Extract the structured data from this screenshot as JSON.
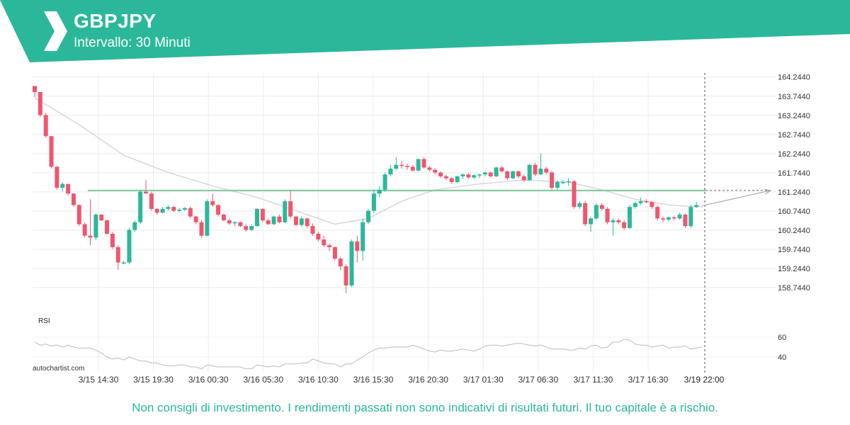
{
  "header": {
    "symbol": "GBPJPY",
    "interval": "Intervallo: 30 Minuti",
    "accent_color": "#2bb89a",
    "logo_icon": "autochartist-logo-icon"
  },
  "footer": {
    "disclaimer": "Non consigli di investimento. I rendimenti passati non sono indicativi di risultati futuri. Il tuo capitale è a rischio.",
    "credit": "autochartist.com"
  },
  "chart_data": {
    "type": "candlestick",
    "title": "GBPJPY",
    "subtitle": "Intervallo: 30 Minuti",
    "ylim": [
      158.3,
      164.35
    ],
    "y_ticks": [
      "164.2440",
      "163.7440",
      "163.2440",
      "162.7440",
      "162.2440",
      "161.7440",
      "161.2440",
      "160.7440",
      "160.2440",
      "159.7440",
      "159.2440",
      "158.7440"
    ],
    "x_ticks": [
      "3/15 14:30",
      "3/15 19:30",
      "3/16 00:30",
      "3/16 05:30",
      "3/16 10:30",
      "3/16 15:30",
      "3/16 20:30",
      "3/17 01:30",
      "3/17 06:30",
      "3/17 11:30",
      "3/17 16:30",
      "3/19 22:00"
    ],
    "up_color": "#2bb89a",
    "down_color": "#f0566e",
    "candles_ohlc": [
      [
        164.01,
        164.01,
        163.72,
        163.85
      ],
      [
        163.85,
        163.85,
        163.2,
        163.25
      ],
      [
        163.25,
        163.3,
        162.65,
        162.7
      ],
      [
        162.7,
        162.7,
        161.85,
        161.9
      ],
      [
        161.9,
        161.92,
        161.3,
        161.35
      ],
      [
        161.35,
        161.5,
        161.25,
        161.45
      ],
      [
        161.45,
        161.45,
        161.15,
        161.2
      ],
      [
        161.2,
        161.2,
        160.85,
        160.9
      ],
      [
        160.9,
        160.92,
        160.35,
        160.4
      ],
      [
        160.4,
        160.45,
        160.05,
        160.1
      ],
      [
        160.1,
        161.05,
        159.85,
        160.05
      ],
      [
        160.05,
        160.68,
        159.98,
        160.65
      ],
      [
        160.65,
        160.66,
        160.48,
        160.5
      ],
      [
        160.5,
        160.52,
        160.12,
        160.15
      ],
      [
        160.15,
        160.2,
        159.75,
        159.8
      ],
      [
        159.8,
        159.85,
        159.2,
        159.4
      ],
      [
        159.4,
        159.45,
        159.35,
        159.4
      ],
      [
        159.4,
        160.3,
        159.35,
        160.25
      ],
      [
        160.25,
        160.5,
        160.2,
        160.45
      ],
      [
        160.45,
        161.3,
        160.4,
        161.25
      ],
      [
        161.25,
        161.55,
        161.2,
        161.2
      ],
      [
        161.2,
        161.25,
        160.75,
        160.8
      ],
      [
        160.8,
        160.82,
        160.65,
        160.7
      ],
      [
        160.7,
        160.85,
        160.68,
        160.8
      ],
      [
        160.8,
        160.9,
        160.75,
        160.85
      ],
      [
        160.85,
        160.88,
        160.72,
        160.75
      ],
      [
        160.75,
        160.82,
        160.7,
        160.78
      ],
      [
        160.78,
        160.85,
        160.74,
        160.82
      ],
      [
        160.82,
        160.86,
        160.55,
        160.6
      ],
      [
        160.6,
        160.62,
        160.4,
        160.45
      ],
      [
        160.45,
        160.5,
        160.05,
        160.1
      ],
      [
        160.1,
        161.05,
        160.08,
        161.0
      ],
      [
        161.0,
        161.2,
        160.85,
        160.9
      ],
      [
        160.9,
        160.92,
        160.6,
        160.65
      ],
      [
        160.65,
        160.68,
        160.48,
        160.5
      ],
      [
        160.5,
        160.55,
        160.38,
        160.42
      ],
      [
        160.42,
        160.48,
        160.35,
        160.45
      ],
      [
        160.45,
        160.47,
        160.32,
        160.35
      ],
      [
        160.35,
        160.4,
        160.2,
        160.25
      ],
      [
        160.25,
        160.4,
        160.22,
        160.35
      ],
      [
        160.35,
        160.82,
        160.33,
        160.8
      ],
      [
        160.8,
        160.82,
        160.45,
        160.5
      ],
      [
        160.5,
        160.55,
        160.38,
        160.4
      ],
      [
        160.4,
        160.62,
        160.38,
        160.6
      ],
      [
        160.6,
        160.65,
        160.42,
        160.45
      ],
      [
        160.45,
        161.05,
        160.42,
        161.0
      ],
      [
        161.0,
        161.3,
        160.55,
        160.6
      ],
      [
        160.6,
        160.62,
        160.35,
        160.38
      ],
      [
        160.38,
        160.6,
        160.33,
        160.55
      ],
      [
        160.55,
        160.57,
        160.3,
        160.35
      ],
      [
        160.35,
        160.42,
        160.1,
        160.15
      ],
      [
        160.15,
        160.2,
        159.95,
        160.0
      ],
      [
        160.0,
        160.1,
        159.8,
        159.85
      ],
      [
        159.85,
        159.9,
        159.7,
        159.8
      ],
      [
        159.8,
        159.82,
        159.45,
        159.5
      ],
      [
        159.5,
        159.55,
        159.2,
        159.3
      ],
      [
        159.3,
        159.35,
        158.6,
        158.8
      ],
      [
        158.8,
        160.0,
        158.75,
        159.95
      ],
      [
        159.95,
        160.1,
        159.4,
        159.7
      ],
      [
        159.7,
        160.55,
        159.45,
        160.45
      ],
      [
        160.45,
        160.8,
        160.4,
        160.75
      ],
      [
        160.75,
        161.3,
        160.7,
        161.2
      ],
      [
        161.2,
        161.4,
        161.1,
        161.3
      ],
      [
        161.3,
        161.75,
        161.25,
        161.7
      ],
      [
        161.7,
        161.95,
        161.65,
        161.85
      ],
      [
        161.85,
        162.15,
        161.8,
        161.95
      ],
      [
        161.95,
        162.05,
        161.85,
        161.92
      ],
      [
        161.92,
        161.98,
        161.82,
        161.9
      ],
      [
        161.9,
        161.95,
        161.78,
        161.8
      ],
      [
        161.8,
        162.12,
        161.78,
        162.1
      ],
      [
        162.1,
        162.15,
        161.85,
        161.88
      ],
      [
        161.88,
        161.92,
        161.78,
        161.82
      ],
      [
        161.82,
        161.86,
        161.7,
        161.75
      ],
      [
        161.75,
        161.78,
        161.6,
        161.65
      ],
      [
        161.65,
        161.7,
        161.55,
        161.6
      ],
      [
        161.6,
        161.63,
        161.45,
        161.5
      ],
      [
        161.5,
        161.67,
        161.48,
        161.65
      ],
      [
        161.65,
        161.72,
        161.58,
        161.7
      ],
      [
        161.7,
        161.74,
        161.58,
        161.62
      ],
      [
        161.62,
        161.7,
        161.58,
        161.68
      ],
      [
        161.68,
        161.72,
        161.6,
        161.7
      ],
      [
        161.7,
        161.78,
        161.65,
        161.75
      ],
      [
        161.75,
        161.77,
        161.62,
        161.65
      ],
      [
        161.65,
        161.9,
        161.63,
        161.88
      ],
      [
        161.88,
        161.92,
        161.75,
        161.78
      ],
      [
        161.78,
        161.8,
        161.55,
        161.6
      ],
      [
        161.6,
        161.8,
        161.58,
        161.78
      ],
      [
        161.78,
        161.8,
        161.6,
        161.65
      ],
      [
        161.65,
        161.7,
        161.5,
        161.55
      ],
      [
        161.55,
        161.98,
        161.53,
        161.95
      ],
      [
        161.95,
        162.0,
        161.65,
        161.7
      ],
      [
        161.7,
        162.25,
        161.68,
        161.85
      ],
      [
        161.85,
        161.9,
        161.7,
        161.75
      ],
      [
        161.75,
        161.8,
        161.3,
        161.35
      ],
      [
        161.35,
        161.55,
        161.3,
        161.5
      ],
      [
        161.5,
        161.55,
        161.45,
        161.5
      ],
      [
        161.5,
        161.6,
        161.4,
        161.52
      ],
      [
        161.52,
        161.55,
        160.8,
        160.85
      ],
      [
        160.85,
        161.0,
        160.8,
        160.95
      ],
      [
        160.95,
        161.0,
        160.35,
        160.4
      ],
      [
        160.4,
        160.6,
        160.2,
        160.55
      ],
      [
        160.55,
        160.95,
        160.5,
        160.9
      ],
      [
        160.9,
        160.95,
        160.75,
        160.8
      ],
      [
        160.8,
        160.85,
        160.4,
        160.45
      ],
      [
        160.45,
        160.55,
        160.1,
        160.5
      ],
      [
        160.5,
        160.55,
        160.4,
        160.45
      ],
      [
        160.45,
        160.5,
        160.25,
        160.3
      ],
      [
        160.3,
        160.9,
        160.28,
        160.85
      ],
      [
        160.85,
        161.0,
        160.8,
        160.95
      ],
      [
        160.95,
        161.1,
        160.9,
        161.0
      ],
      [
        161.0,
        161.05,
        160.95,
        160.98
      ],
      [
        160.98,
        161.0,
        160.8,
        160.85
      ],
      [
        160.85,
        160.9,
        160.5,
        160.55
      ],
      [
        160.55,
        160.6,
        160.45,
        160.52
      ],
      [
        160.52,
        160.6,
        160.47,
        160.58
      ],
      [
        160.58,
        160.62,
        160.5,
        160.55
      ],
      [
        160.55,
        160.7,
        160.52,
        160.65
      ],
      [
        160.65,
        160.68,
        160.3,
        160.35
      ],
      [
        160.35,
        160.9,
        160.3,
        160.85
      ],
      [
        160.85,
        160.98,
        160.82,
        160.9
      ]
    ],
    "moving_average": [
      [
        0,
        163.7
      ],
      [
        8,
        163.0
      ],
      [
        16,
        162.2
      ],
      [
        24,
        161.75
      ],
      [
        32,
        161.4
      ],
      [
        40,
        161.1
      ],
      [
        48,
        160.7
      ],
      [
        54,
        160.4
      ],
      [
        60,
        160.55
      ],
      [
        66,
        161.0
      ],
      [
        72,
        161.3
      ],
      [
        80,
        161.45
      ],
      [
        88,
        161.55
      ],
      [
        96,
        161.5
      ],
      [
        102,
        161.3
      ],
      [
        108,
        161.05
      ],
      [
        114,
        160.9
      ],
      [
        120,
        160.85
      ]
    ],
    "support_resistance_level": 161.28,
    "forecast_projection": [
      [
        120,
        160.88
      ],
      [
        131,
        161.28
      ]
    ],
    "indicator": {
      "name": "RSI",
      "ticks": [
        "60",
        "40"
      ],
      "ylim": [
        30,
        70
      ],
      "values": [
        55,
        52,
        53,
        51,
        52,
        50,
        52,
        50,
        49,
        49,
        49,
        47,
        44,
        40,
        38,
        39,
        37,
        40,
        38,
        36,
        36,
        34,
        34,
        32,
        31,
        31,
        32,
        32,
        30,
        30,
        28,
        32,
        31,
        30,
        30,
        30,
        30,
        30,
        28,
        28,
        32,
        31,
        30,
        31,
        30,
        33,
        33,
        33,
        34,
        34,
        38,
        36,
        34,
        33,
        33,
        30,
        33,
        33,
        37,
        40,
        44,
        47,
        49,
        49,
        50,
        50,
        50,
        50,
        52,
        50,
        48,
        46,
        45,
        47,
        46,
        46,
        47,
        48,
        47,
        46,
        48,
        51,
        52,
        52,
        51,
        52,
        53,
        54,
        53,
        52,
        51,
        52,
        50,
        48,
        48,
        48,
        47,
        47,
        49,
        48,
        51,
        52,
        49,
        50,
        55,
        55,
        58,
        57,
        53,
        52,
        52,
        50,
        51,
        52,
        49,
        50,
        50,
        51,
        48,
        49,
        50
      ]
    }
  }
}
